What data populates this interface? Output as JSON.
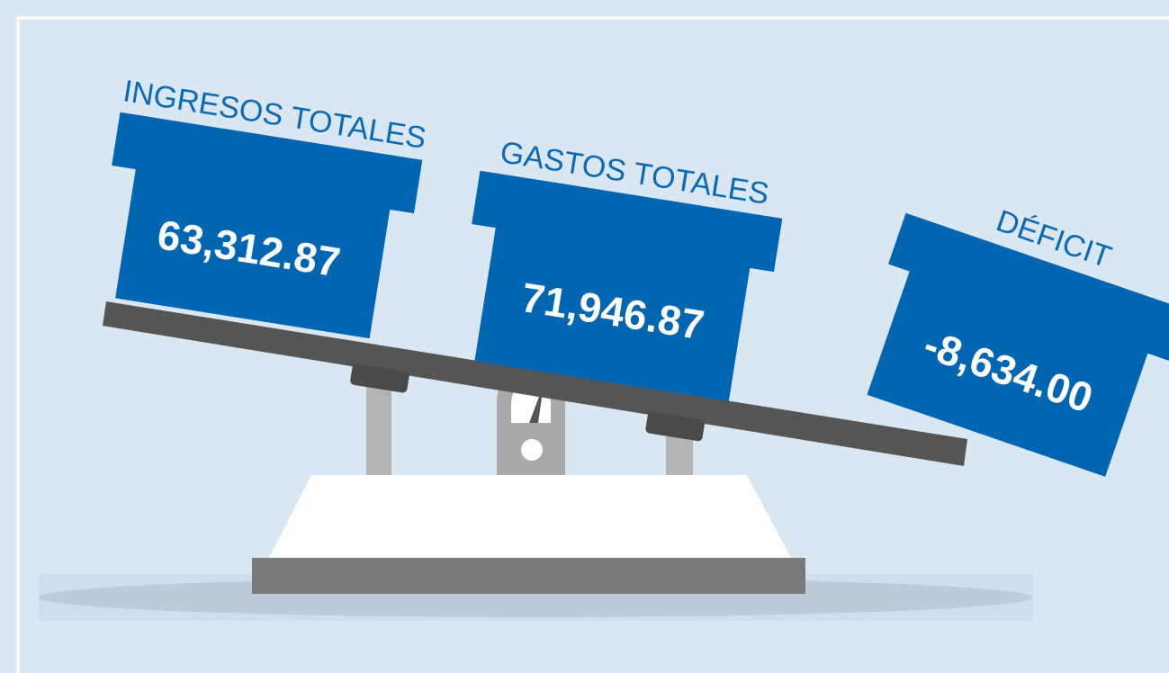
{
  "boxes": [
    {
      "label": "INGRESOS TOTALES",
      "value": "63,312.87"
    },
    {
      "label": "GASTOS TOTALES",
      "value": "71,946.87"
    },
    {
      "label": "DÉFICIT",
      "value": "-8,634.00"
    }
  ]
}
